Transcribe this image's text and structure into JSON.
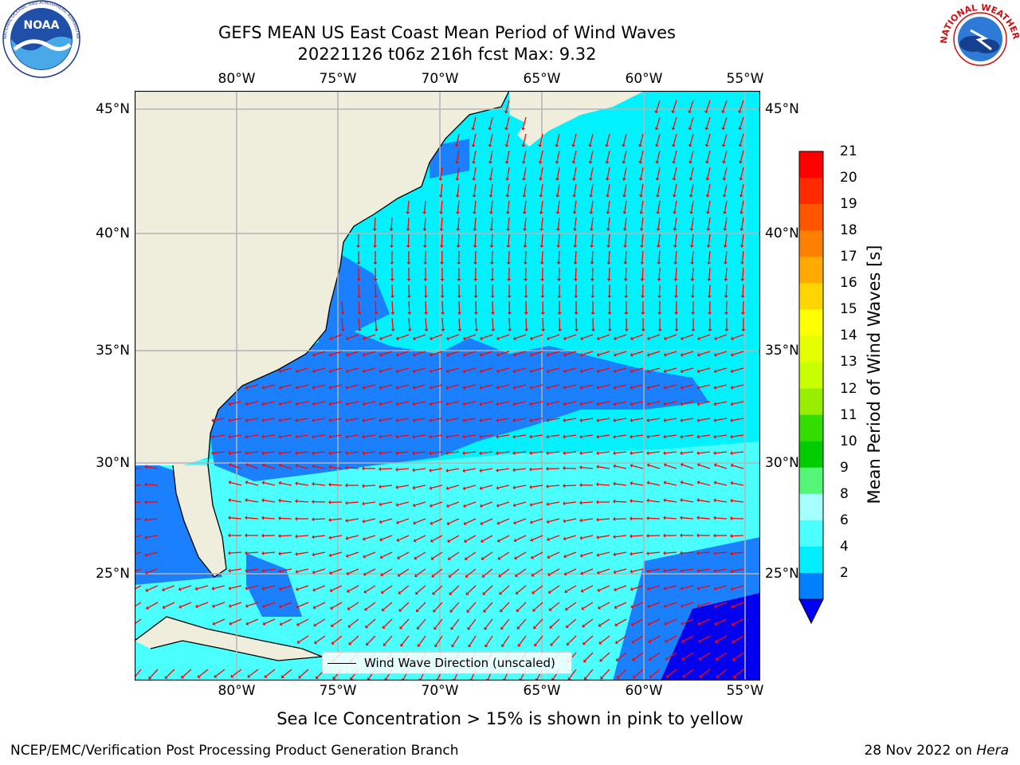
{
  "title": {
    "line1": "GEFS MEAN US East Coast Mean Period of Wind Waves",
    "line2": "20221126 t06z 216h fcst   Max: 9.32"
  },
  "axes": {
    "lon_ticks": [
      "80°W",
      "75°W",
      "70°W",
      "65°W",
      "60°W",
      "55°W"
    ],
    "lat_ticks": [
      "45°N",
      "40°N",
      "35°N",
      "30°N",
      "25°N"
    ]
  },
  "colorbar": {
    "label": "Mean Period of Wind Waves [s]",
    "ticks": [
      "21",
      "20",
      "19",
      "18",
      "17",
      "16",
      "15",
      "14",
      "13",
      "12",
      "11",
      "10",
      "9",
      "8",
      "6",
      "4",
      "2"
    ],
    "colors": [
      "#ff0000",
      "#ff2a00",
      "#ff5500",
      "#ff8000",
      "#ffaa00",
      "#ffd500",
      "#ffff00",
      "#e6ff00",
      "#c8ff00",
      "#99ee00",
      "#33dd00",
      "#00cc00",
      "#55f577",
      "#a5ffff",
      "#4cffff",
      "#00eeff",
      "#0080ff"
    ],
    "extend_color": "#0000ff"
  },
  "legend": {
    "label": "Wind Wave Direction (unscaled)"
  },
  "note": "Sea Ice Concentration > 15% is shown in pink to yellow",
  "footer": {
    "left": "NCEP/EMC/Verification Post Processing Product Generation Branch",
    "right_date": "28 Nov 2022 on ",
    "right_host": "Hera"
  },
  "logos": {
    "noaa_text": "NOAA",
    "noaa_ring": "NATIONAL OCEANIC AND ATMOSPHERIC ADMINISTRATION · U.S. DEPARTMENT OF COMMERCE",
    "nws_ring": "NATIONAL WEATHER SERVICE"
  },
  "map_colors": {
    "land": "#efeddc",
    "ocean_light": "#00f2ff",
    "ocean_mid": "#4cffff",
    "ocean_dark": "#1a80ff",
    "ocean_deep": "#0000f0",
    "arrow": "#ff0000"
  }
}
